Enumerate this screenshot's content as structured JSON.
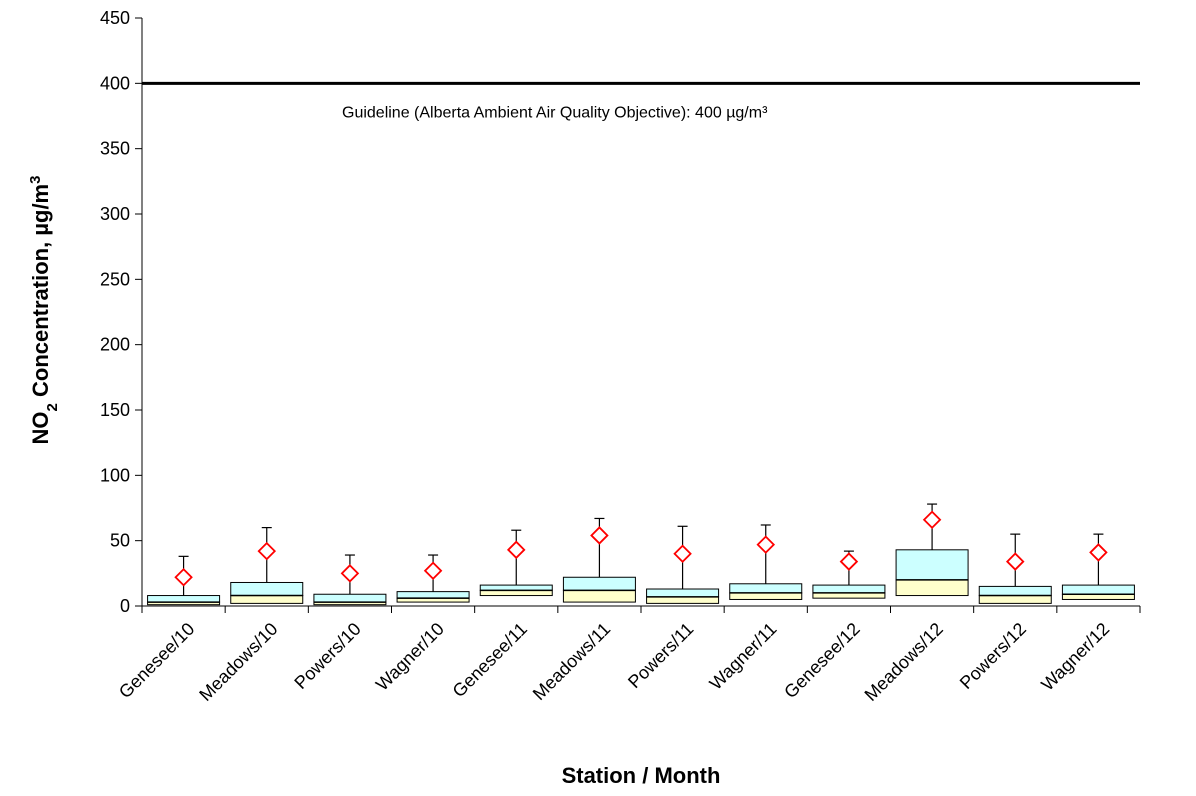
{
  "chart_data": {
    "type": "box",
    "xlabel": "Station / Month",
    "ylabel": {
      "prefix": "NO",
      "subscript": "2",
      "rest": " Concentration, µg/m",
      "superscript": "3"
    },
    "ylim": [
      0,
      450
    ],
    "yticks": [
      0,
      50,
      100,
      150,
      200,
      250,
      300,
      350,
      400,
      450
    ],
    "grid": false,
    "categories": [
      "Genesee/10",
      "Meadows/10",
      "Powers/10",
      "Wagner/10",
      "Genesee/11",
      "Meadows/11",
      "Powers/11",
      "Wagner/11",
      "Genesee/12",
      "Meadows/12",
      "Powers/12",
      "Wagner/12"
    ],
    "boxes": [
      {
        "min": 1,
        "q1": 1,
        "median": 3,
        "q3": 8,
        "max": 38,
        "mean": 22
      },
      {
        "min": 2,
        "q1": 2,
        "median": 8,
        "q3": 18,
        "max": 60,
        "mean": 42
      },
      {
        "min": 1,
        "q1": 1,
        "median": 3,
        "q3": 9,
        "max": 39,
        "mean": 25
      },
      {
        "min": 3,
        "q1": 3,
        "median": 6,
        "q3": 11,
        "max": 39,
        "mean": 27
      },
      {
        "min": 8,
        "q1": 8,
        "median": 12,
        "q3": 16,
        "max": 58,
        "mean": 43
      },
      {
        "min": 3,
        "q1": 3,
        "median": 12,
        "q3": 22,
        "max": 67,
        "mean": 54
      },
      {
        "min": 2,
        "q1": 2,
        "median": 7,
        "q3": 13,
        "max": 61,
        "mean": 40
      },
      {
        "min": 5,
        "q1": 5,
        "median": 10,
        "q3": 17,
        "max": 62,
        "mean": 47
      },
      {
        "min": 6,
        "q1": 6,
        "median": 10,
        "q3": 16,
        "max": 42,
        "mean": 34
      },
      {
        "min": 8,
        "q1": 8,
        "median": 20,
        "q3": 43,
        "max": 78,
        "mean": 66
      },
      {
        "min": 2,
        "q1": 2,
        "median": 8,
        "q3": 15,
        "max": 55,
        "mean": 34
      },
      {
        "min": 5,
        "q1": 5,
        "median": 9,
        "q3": 16,
        "max": 55,
        "mean": 41
      }
    ],
    "guideline": {
      "value": 400,
      "label": "Guideline (Alberta Ambient Air Quality Objective): 400 µg/m³"
    },
    "colors": {
      "upper_box": "#ccffff",
      "lower_box": "#ffffcc",
      "mean_marker": "#ff0000",
      "line": "#000000"
    }
  }
}
